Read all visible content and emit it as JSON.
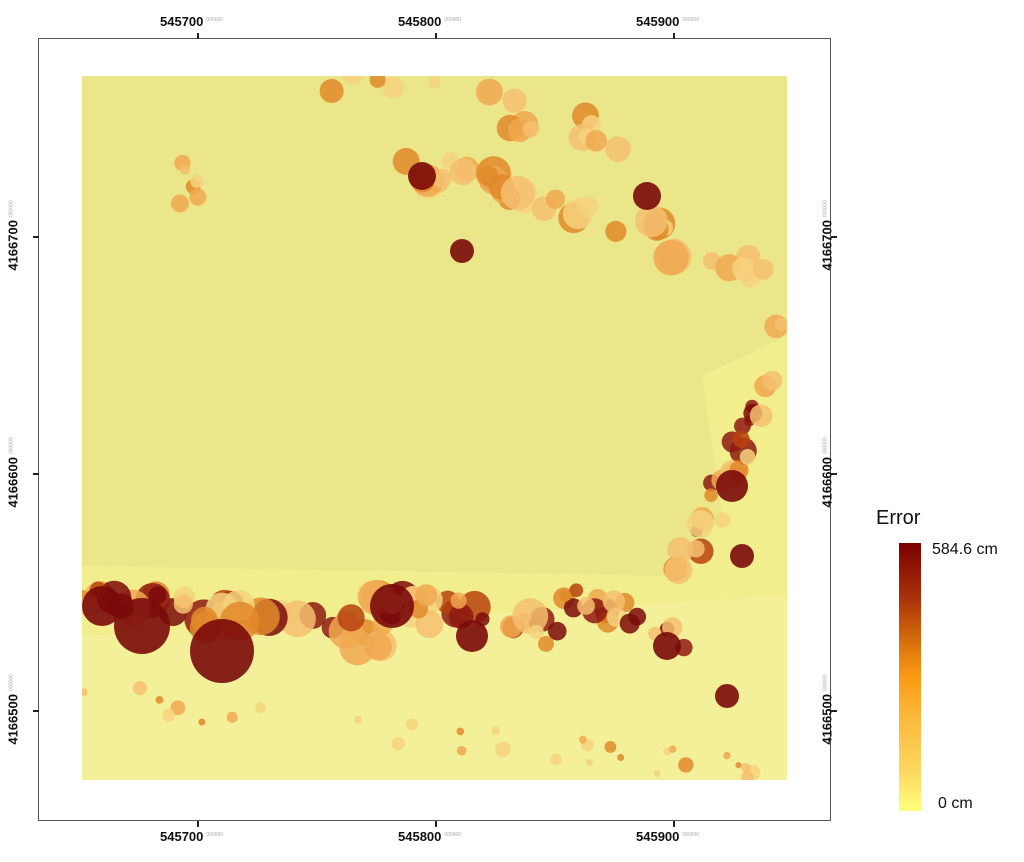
{
  "map": {
    "x_ticks": [
      "545700",
      "545800",
      "545900"
    ],
    "y_ticks": [
      "4166700",
      "4166600",
      "4166500"
    ],
    "tick_suffix": "000000"
  },
  "legend": {
    "title": "Error",
    "max_label": "584.6 cm",
    "min_label": "0 cm",
    "colors": {
      "high": "#7a0000",
      "mid": "#fb9a14",
      "low": "#ffff7a",
      "background": "#f0ec8c"
    }
  }
}
